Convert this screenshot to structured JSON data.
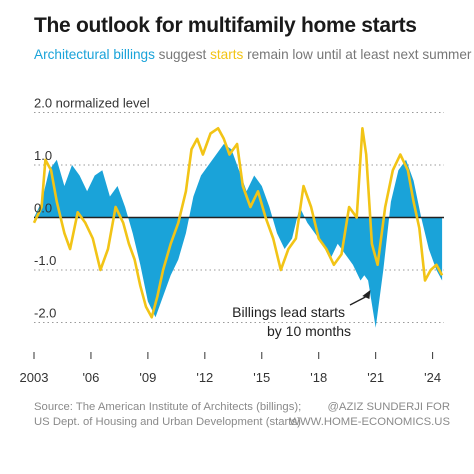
{
  "title": "The outlook for multifamily home starts",
  "subtitle": {
    "part1": "Architectural billings",
    "part2": " suggest ",
    "part3": "starts",
    "part4": " remain low until at least next summer"
  },
  "annotation": [
    "Billings lead starts",
    "by 10 months"
  ],
  "footer": {
    "source": [
      "Source: The American Institute of Architects (billings);",
      "US Dept. of Housing and Urban Development (starts)"
    ],
    "credit": [
      "@AZIZ SUNDERJI FOR",
      "WWW.HOME-ECONOMICS.US"
    ]
  },
  "colors": {
    "billings": "#1aa3d9",
    "starts": "#f2c416",
    "zero_line": "#222222"
  },
  "chart_data": {
    "type": "area",
    "title": "The outlook for multifamily home starts",
    "ylabel": "normalized level",
    "ylim": [
      -2.6,
      2.2
    ],
    "xlim": [
      2003,
      2024.6
    ],
    "y_ticks": [
      {
        "value": 2.0,
        "label": "2.0 normalized level"
      },
      {
        "value": 1.0,
        "label": "1.0"
      },
      {
        "value": 0.0,
        "label": "0.0"
      },
      {
        "value": -1.0,
        "label": "-1.0"
      },
      {
        "value": -2.0,
        "label": "-2.0"
      }
    ],
    "x_ticks": [
      {
        "value": 2003,
        "label": "2003"
      },
      {
        "value": 2006,
        "label": "'06"
      },
      {
        "value": 2009,
        "label": "'09"
      },
      {
        "value": 2012,
        "label": "'12"
      },
      {
        "value": 2015,
        "label": "'15"
      },
      {
        "value": 2018,
        "label": "'18"
      },
      {
        "value": 2021,
        "label": "'21"
      },
      {
        "value": 2024,
        "label": "'24"
      }
    ],
    "series": [
      {
        "name": "Architectural billings",
        "style": "area",
        "x": [
          2003.0,
          2003.4,
          2003.8,
          2004.2,
          2004.6,
          2005.0,
          2005.4,
          2005.8,
          2006.2,
          2006.6,
          2007.0,
          2007.4,
          2007.8,
          2008.2,
          2008.6,
          2009.0,
          2009.4,
          2009.8,
          2010.2,
          2010.6,
          2011.0,
          2011.4,
          2011.8,
          2012.2,
          2012.6,
          2013.0,
          2013.4,
          2013.8,
          2014.2,
          2014.6,
          2015.0,
          2015.4,
          2015.8,
          2016.2,
          2016.6,
          2017.0,
          2017.4,
          2017.8,
          2018.2,
          2018.6,
          2019.0,
          2019.4,
          2019.8,
          2020.2,
          2020.4,
          2020.6,
          2021.0,
          2021.4,
          2021.8,
          2022.2,
          2022.6,
          2023.0,
          2023.4,
          2023.8,
          2024.2,
          2024.5
        ],
        "values": [
          0.0,
          0.3,
          0.9,
          1.1,
          0.6,
          1.0,
          0.8,
          0.5,
          0.8,
          0.9,
          0.4,
          0.6,
          0.2,
          -0.3,
          -0.9,
          -1.6,
          -1.9,
          -1.5,
          -1.1,
          -0.8,
          -0.3,
          0.4,
          0.8,
          1.0,
          1.2,
          1.4,
          1.3,
          0.9,
          0.5,
          0.8,
          0.6,
          0.2,
          -0.3,
          -0.6,
          -0.4,
          0.2,
          -0.1,
          -0.3,
          -0.5,
          -0.8,
          -0.5,
          -0.7,
          -0.9,
          -1.2,
          -1.1,
          -1.2,
          -2.1,
          -1.0,
          0.3,
          0.9,
          1.1,
          0.7,
          0.0,
          -0.6,
          -1.0,
          -1.2
        ]
      },
      {
        "name": "Multifamily starts",
        "style": "line",
        "x": [
          2003.0,
          2003.4,
          2003.6,
          2003.9,
          2004.2,
          2004.6,
          2004.9,
          2005.3,
          2005.7,
          2006.1,
          2006.5,
          2006.9,
          2007.3,
          2007.7,
          2008.0,
          2008.3,
          2008.6,
          2008.9,
          2009.2,
          2009.5,
          2009.8,
          2010.2,
          2010.6,
          2011.0,
          2011.3,
          2011.6,
          2011.9,
          2012.3,
          2012.7,
          2013.0,
          2013.3,
          2013.7,
          2014.0,
          2014.4,
          2014.8,
          2015.2,
          2015.6,
          2016.0,
          2016.4,
          2016.8,
          2017.2,
          2017.6,
          2018.0,
          2018.4,
          2018.8,
          2019.2,
          2019.6,
          2020.0,
          2020.3,
          2020.5,
          2020.8,
          2021.1,
          2021.5,
          2021.9,
          2022.3,
          2022.7,
          2023.0,
          2023.3,
          2023.6,
          2023.9,
          2024.2,
          2024.5
        ],
        "values": [
          -0.1,
          0.2,
          1.1,
          0.9,
          0.3,
          -0.3,
          -0.6,
          0.1,
          -0.1,
          -0.4,
          -1.0,
          -0.6,
          0.2,
          -0.1,
          -0.5,
          -0.8,
          -1.3,
          -1.7,
          -1.9,
          -1.5,
          -1.0,
          -0.5,
          -0.1,
          0.5,
          1.3,
          1.5,
          1.2,
          1.6,
          1.7,
          1.5,
          1.2,
          1.4,
          0.6,
          0.2,
          0.5,
          0.0,
          -0.4,
          -1.0,
          -0.6,
          -0.4,
          0.6,
          0.2,
          -0.4,
          -0.6,
          -0.9,
          -0.7,
          0.2,
          0.0,
          1.7,
          1.2,
          -0.5,
          -0.9,
          0.2,
          0.9,
          1.2,
          0.9,
          0.3,
          -0.2,
          -1.2,
          -1.0,
          -0.9,
          -1.1
        ]
      }
    ],
    "annotation": {
      "text": "Billings lead starts by 10 months",
      "points_to_x": 2020.3
    }
  }
}
